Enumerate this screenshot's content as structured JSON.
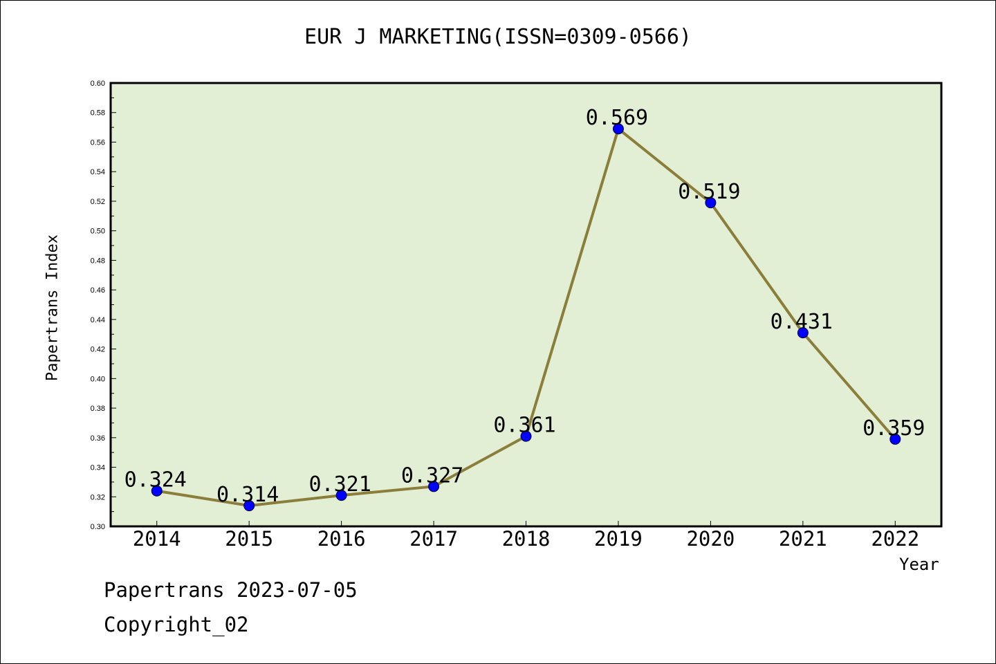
{
  "chart_data": {
    "type": "line",
    "title": "EUR J MARKETING(ISSN=0309-0566)",
    "xlabel": "Year",
    "ylabel": "Papertrans Index",
    "categories": [
      "2014",
      "2015",
      "2016",
      "2017",
      "2018",
      "2019",
      "2020",
      "2021",
      "2022"
    ],
    "series": [
      {
        "values": [
          0.324,
          0.314,
          0.321,
          0.327,
          0.361,
          0.569,
          0.519,
          0.431,
          0.359
        ]
      }
    ],
    "data_labels": [
      "0.324",
      "0.314",
      "0.321",
      "0.327",
      "0.361",
      "0.569",
      "0.519",
      "0.431",
      "0.359"
    ],
    "ylim": [
      0.3,
      0.6
    ],
    "yticks": [
      "0.30",
      "0.32",
      "0.34",
      "0.36",
      "0.38",
      "0.40",
      "0.42",
      "0.44",
      "0.46",
      "0.48",
      "0.50",
      "0.52",
      "0.54",
      "0.56",
      "0.58",
      "0.60"
    ],
    "grid": false,
    "colors": {
      "plot_background": "#e2efd5",
      "line": "#8b7d3a",
      "marker": "#0000ff"
    }
  },
  "footer": {
    "line1": "Papertrans 2023-07-05",
    "line2": "Copyright_02"
  }
}
